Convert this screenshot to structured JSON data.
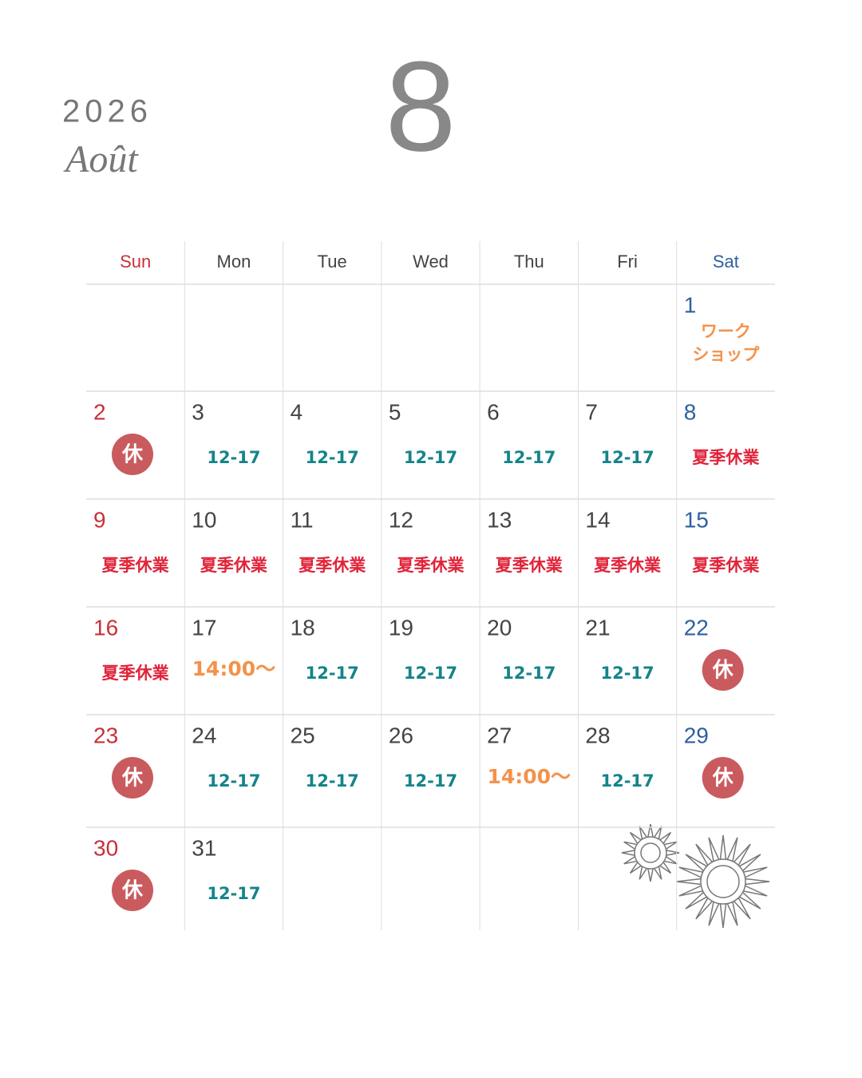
{
  "header": {
    "year": "2026",
    "month_name": "Août",
    "month_number": "8"
  },
  "weekdays": [
    {
      "label": "Sun",
      "color": "#c8313a"
    },
    {
      "label": "Mon",
      "color": "#444444"
    },
    {
      "label": "Tue",
      "color": "#444444"
    },
    {
      "label": "Wed",
      "color": "#444444"
    },
    {
      "label": "Thu",
      "color": "#444444"
    },
    {
      "label": "Fri",
      "color": "#444444"
    },
    {
      "label": "Sat",
      "color": "#2f5fa0"
    }
  ],
  "weeks": [
    [
      null,
      null,
      null,
      null,
      null,
      null,
      {
        "day": 1,
        "note": {
          "lines": [
            "ワーク",
            "ショップ"
          ],
          "color": "#f3924a"
        }
      }
    ],
    [
      {
        "day": 2,
        "note": {
          "text": "休",
          "color": "#c95b5f",
          "badge": true
        }
      },
      {
        "day": 3,
        "note": {
          "text": "12-17",
          "color": "#14848a"
        }
      },
      {
        "day": 4,
        "note": {
          "text": "12-17",
          "color": "#14848a"
        }
      },
      {
        "day": 5,
        "note": {
          "text": "12-17",
          "color": "#14848a"
        }
      },
      {
        "day": 6,
        "note": {
          "text": "12-17",
          "color": "#14848a"
        }
      },
      {
        "day": 7,
        "note": {
          "text": "12-17",
          "color": "#14848a"
        }
      },
      {
        "day": 8,
        "note": {
          "text": "夏季休業",
          "color": "#e0243a"
        }
      }
    ],
    [
      {
        "day": 9,
        "note": {
          "text": "夏季休業",
          "color": "#e0243a"
        }
      },
      {
        "day": 10,
        "note": {
          "text": "夏季休業",
          "color": "#e0243a"
        }
      },
      {
        "day": 11,
        "note": {
          "text": "夏季休業",
          "color": "#e0243a"
        }
      },
      {
        "day": 12,
        "note": {
          "text": "夏季休業",
          "color": "#e0243a"
        }
      },
      {
        "day": 13,
        "note": {
          "text": "夏季休業",
          "color": "#e0243a"
        }
      },
      {
        "day": 14,
        "note": {
          "text": "夏季休業",
          "color": "#e0243a"
        }
      },
      {
        "day": 15,
        "note": {
          "text": "夏季休業",
          "color": "#e0243a"
        }
      }
    ],
    [
      {
        "day": 16,
        "note": {
          "text": "夏季休業",
          "color": "#e0243a"
        }
      },
      {
        "day": 17,
        "note": {
          "text": "14:00〜",
          "color": "#f3924a"
        }
      },
      {
        "day": 18,
        "note": {
          "text": "12-17",
          "color": "#14848a"
        }
      },
      {
        "day": 19,
        "note": {
          "text": "12-17",
          "color": "#14848a"
        }
      },
      {
        "day": 20,
        "note": {
          "text": "12-17",
          "color": "#14848a"
        }
      },
      {
        "day": 21,
        "note": {
          "text": "12-17",
          "color": "#14848a"
        }
      },
      {
        "day": 22,
        "note": {
          "text": "休",
          "color": "#c95b5f",
          "badge": true
        }
      }
    ],
    [
      {
        "day": 23,
        "note": {
          "text": "休",
          "color": "#c95b5f",
          "badge": true
        }
      },
      {
        "day": 24,
        "note": {
          "text": "12-17",
          "color": "#14848a"
        }
      },
      {
        "day": 25,
        "note": {
          "text": "12-17",
          "color": "#14848a"
        }
      },
      {
        "day": 26,
        "note": {
          "text": "12-17",
          "color": "#14848a"
        }
      },
      {
        "day": 27,
        "note": {
          "text": "14:00〜",
          "color": "#f3924a"
        }
      },
      {
        "day": 28,
        "note": {
          "text": "12-17",
          "color": "#14848a"
        }
      },
      {
        "day": 29,
        "note": {
          "text": "休",
          "color": "#c95b5f",
          "badge": true
        }
      }
    ],
    [
      {
        "day": 30,
        "note": {
          "text": "休",
          "color": "#c95b5f",
          "badge": true
        }
      },
      {
        "day": 31,
        "note": {
          "text": "12-17",
          "color": "#14848a"
        }
      },
      null,
      null,
      null,
      null,
      null
    ]
  ]
}
